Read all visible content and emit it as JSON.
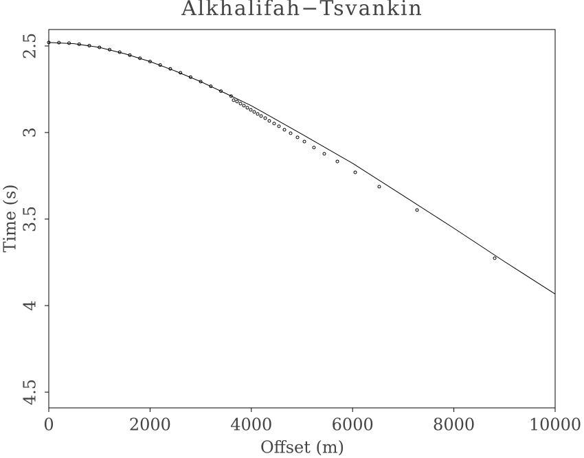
{
  "chart_data": {
    "type": "line",
    "title": "Alkhalifah−Tsvankin",
    "xlabel": "Offset (m)",
    "ylabel": "Time (s)",
    "xlim": [
      0,
      10000
    ],
    "xticks": [
      0,
      2000,
      4000,
      6000,
      8000,
      10000
    ],
    "ylim": [
      2.405,
      4.591
    ],
    "yticks": [
      2.5,
      3,
      3.5,
      4,
      4.5
    ],
    "invert_y": true,
    "grid": false,
    "series": [
      {
        "mode": "line",
        "color": "#000000",
        "x": [
          0,
          500,
          1000,
          1500,
          2000,
          2500,
          3000,
          3500,
          4000,
          5000,
          6000,
          7000,
          8000,
          9000,
          10000
        ],
        "values": [
          2.48,
          2.487,
          2.508,
          2.545,
          2.59,
          2.645,
          2.706,
          2.775,
          2.845,
          3.01,
          3.178,
          3.365,
          3.553,
          3.746,
          3.933
        ]
      },
      {
        "mode": "markers",
        "color": "#000000",
        "x": [
          0,
          200,
          400,
          600,
          800,
          1000,
          1200,
          1400,
          1600,
          1800,
          2000,
          2200,
          2400,
          2600,
          2800,
          3000,
          3200,
          3400,
          3600,
          3650,
          3718,
          3786,
          3853,
          3921,
          3989,
          4057,
          4125,
          4193,
          4274,
          4355,
          4450,
          4545,
          4654,
          4776,
          4912,
          5048,
          5237,
          5441,
          5699,
          6052,
          6526,
          7273,
          8806
        ],
        "values": [
          2.48,
          2.481,
          2.484,
          2.49,
          2.498,
          2.508,
          2.521,
          2.536,
          2.553,
          2.571,
          2.59,
          2.61,
          2.632,
          2.655,
          2.68,
          2.706,
          2.733,
          2.761,
          2.79,
          2.813,
          2.821,
          2.833,
          2.845,
          2.857,
          2.869,
          2.881,
          2.893,
          2.905,
          2.917,
          2.933,
          2.948,
          2.964,
          2.984,
          3.004,
          3.028,
          3.052,
          3.087,
          3.123,
          3.167,
          3.23,
          3.313,
          3.448,
          3.726
        ]
      }
    ]
  }
}
